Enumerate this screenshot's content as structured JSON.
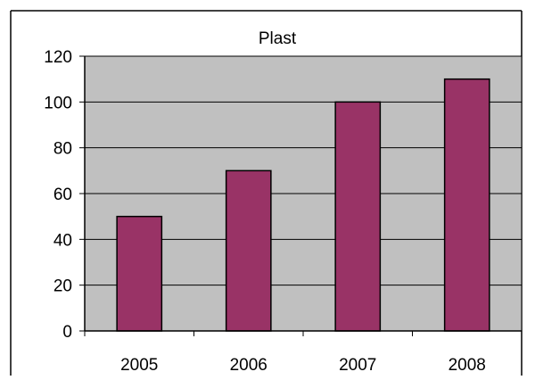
{
  "chart_data": {
    "type": "bar",
    "title": "Plast",
    "categories": [
      "2005",
      "2006",
      "2007",
      "2008"
    ],
    "series": [
      {
        "values": [
          50,
          70,
          100,
          110
        ]
      }
    ],
    "ylim": [
      0,
      120
    ],
    "yticks": [
      0,
      20,
      40,
      60,
      80,
      100,
      120
    ],
    "xlabel": "",
    "ylabel": "",
    "grid": true,
    "legend": "none"
  },
  "colors": {
    "bar": "#993366",
    "plot_background": "#c0c0c0",
    "grid": "#000000",
    "frame": "#000000"
  }
}
